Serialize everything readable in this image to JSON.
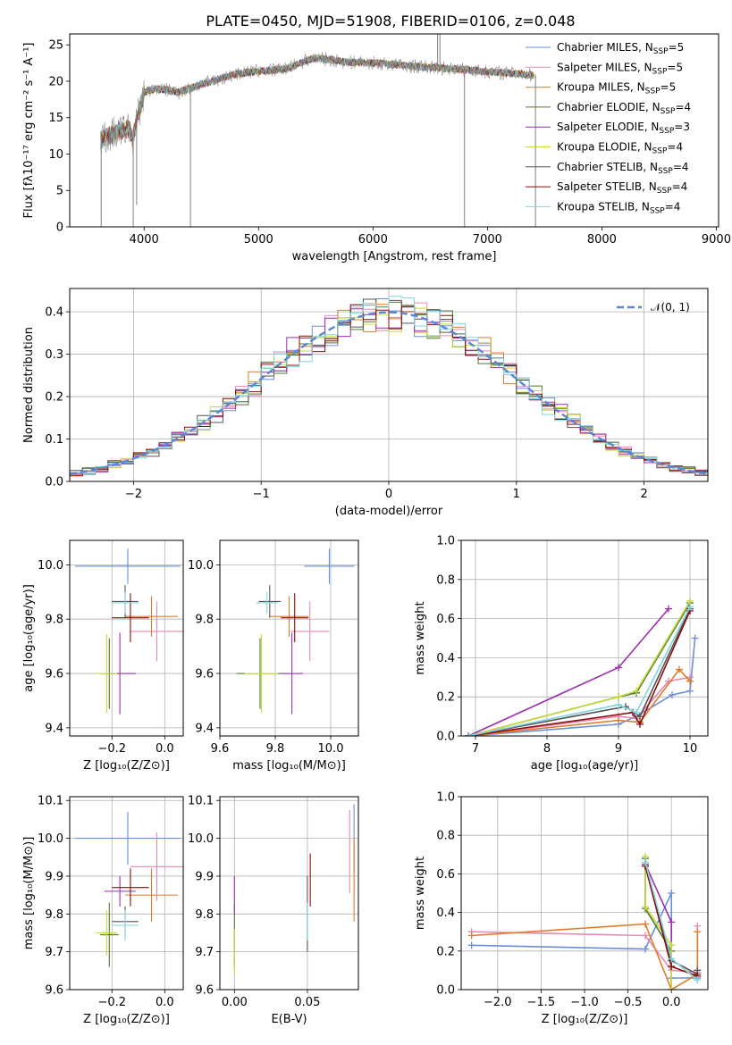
{
  "colors": {
    "chabrier_miles": "#6a8fd8",
    "salpeter_miles": "#e58ab4",
    "kroupa_miles": "#e07b2a",
    "chabrier_elodie": "#4c7a35",
    "salpeter_elodie": "#9b2fb0",
    "kroupa_elodie": "#c9d93a",
    "chabrier_stelib": "#555555",
    "salpeter_stelib": "#8b0d0d",
    "kroupa_stelib": "#7fd6de",
    "normal": "#5a86d6",
    "observed": "#808080"
  },
  "chart_data": [
    {
      "id": "spectrum",
      "type": "line",
      "title": "PLATE=0450, MJD=51908, FIBERID=0106, z=0.048",
      "xlabel": "wavelength [Angstrom, rest frame]",
      "ylabel": "Flux [fλ10⁻¹⁷ erg cm⁻² s⁻¹ A⁻¹]",
      "xlim": [
        3350,
        9020
      ],
      "ylim": [
        0,
        26.5
      ],
      "xticks": [
        4000,
        5000,
        6000,
        7000,
        8000,
        9000
      ],
      "yticks": [
        0,
        5,
        10,
        15,
        20,
        25
      ],
      "grid": false,
      "legend_position": "right",
      "legend": [
        {
          "label": "Chabrier MILES, N",
          "sub": "SSP",
          "tail": "=5",
          "color": "chabrier_miles"
        },
        {
          "label": "Salpeter MILES, N",
          "sub": "SSP",
          "tail": "=5",
          "color": "salpeter_miles"
        },
        {
          "label": "Kroupa MILES, N",
          "sub": "SSP",
          "tail": "=5",
          "color": "kroupa_miles"
        },
        {
          "label": "Chabrier ELODIE, N",
          "sub": "SSP",
          "tail": "=4",
          "color": "chabrier_elodie"
        },
        {
          "label": "Salpeter ELODIE, N",
          "sub": "SSP",
          "tail": "=3",
          "color": "salpeter_elodie"
        },
        {
          "label": "Kroupa ELODIE, N",
          "sub": "SSP",
          "tail": "=4",
          "color": "kroupa_elodie"
        },
        {
          "label": "Chabrier STELIB, N",
          "sub": "SSP",
          "tail": "=4",
          "color": "chabrier_stelib"
        },
        {
          "label": "Salpeter STELIB, N",
          "sub": "SSP",
          "tail": "=4",
          "color": "salpeter_stelib"
        },
        {
          "label": "Kroupa STELIB, N",
          "sub": "SSP",
          "tail": "=4",
          "color": "kroupa_stelib"
        }
      ],
      "continuum": {
        "x": [
          3620,
          3700,
          3800,
          3870,
          3900,
          3950,
          4000,
          4100,
          4200,
          4300,
          4400,
          4500,
          4600,
          4700,
          4800,
          4900,
          5000,
          5100,
          5200,
          5300,
          5400,
          5500,
          5600,
          5700,
          5800,
          5900,
          6000,
          6100,
          6200,
          6300,
          6400,
          6500,
          6600,
          6700,
          6800,
          6900,
          7000,
          7100,
          7200,
          7300,
          7400
        ],
        "y": [
          12.0,
          12.5,
          13.2,
          13.5,
          12.0,
          15.5,
          18.5,
          19.0,
          18.8,
          18.5,
          19.0,
          19.6,
          20.0,
          20.5,
          21.0,
          21.2,
          21.4,
          21.5,
          21.6,
          22.0,
          22.8,
          23.2,
          23.0,
          22.8,
          22.6,
          22.6,
          22.5,
          22.4,
          22.3,
          22.1,
          22.0,
          21.9,
          21.8,
          21.7,
          21.6,
          21.5,
          21.3,
          21.2,
          21.1,
          21.0,
          20.8
        ]
      },
      "spikes": [
        {
          "x": 3625,
          "to": 0
        },
        {
          "x": 3905,
          "to": 0
        },
        {
          "x": 3935,
          "to": 3
        },
        {
          "x": 4405,
          "to": 0
        },
        {
          "x": 6565,
          "to": 26.5
        },
        {
          "x": 6585,
          "to": 26.5
        },
        {
          "x": 6800,
          "to": 0
        },
        {
          "x": 7420,
          "to": 0
        }
      ]
    },
    {
      "id": "residuals",
      "type": "histogram",
      "xlabel": "(data-model)/error",
      "ylabel": "Normed distribution",
      "xlim": [
        -2.5,
        2.5
      ],
      "ylim": [
        0,
        0.455
      ],
      "xticks": [
        -2,
        -1,
        0,
        1,
        2
      ],
      "yticks": [
        0.0,
        0.1,
        0.2,
        0.3,
        0.4
      ],
      "grid": true,
      "legend_position": "top-right",
      "legend": [
        {
          "label": "𝒩(0, 1)",
          "color": "normal"
        }
      ],
      "bin_width": 0.1,
      "curve": {
        "type": "normal",
        "mean": 0,
        "sigma": 1
      }
    },
    {
      "id": "age_vs_Z",
      "type": "scatter",
      "xlabel": "Z [log₁₀(Z/Z⊙)]",
      "ylabel": "age  [log₁₀(age/yr)]",
      "xlim": [
        -0.36,
        0.07
      ],
      "ylim": [
        9.37,
        10.09
      ],
      "xticks": [
        -0.2,
        0.0
      ],
      "yticks": [
        9.4,
        9.6,
        9.8,
        10.0
      ],
      "grid": true,
      "points": [
        {
          "model": "chabrier_miles",
          "x": -0.14,
          "xerr": 0.2,
          "y": 9.995,
          "yerr": 0.065
        },
        {
          "model": "salpeter_miles",
          "x": -0.03,
          "xerr": 0.1,
          "y": 9.755,
          "yerr": 0.11
        },
        {
          "model": "kroupa_miles",
          "x": -0.05,
          "xerr": 0.1,
          "y": 9.81,
          "yerr": 0.075
        },
        {
          "model": "chabrier_elodie",
          "x": -0.21,
          "xerr": 0.035,
          "y": 9.6,
          "yerr": 0.13
        },
        {
          "model": "salpeter_elodie",
          "x": -0.17,
          "xerr": 0.06,
          "y": 9.6,
          "yerr": 0.15
        },
        {
          "model": "kroupa_elodie",
          "x": -0.22,
          "xerr": 0.04,
          "y": 9.6,
          "yerr": 0.145
        },
        {
          "model": "chabrier_stelib",
          "x": -0.15,
          "xerr": 0.05,
          "y": 9.865,
          "yerr": 0.06
        },
        {
          "model": "salpeter_stelib",
          "x": -0.13,
          "xerr": 0.07,
          "y": 9.805,
          "yerr": 0.09
        },
        {
          "model": "kroupa_stelib",
          "x": -0.15,
          "xerr": 0.05,
          "y": 9.86,
          "yerr": 0.04
        }
      ]
    },
    {
      "id": "age_vs_mass",
      "type": "scatter",
      "xlabel": "mass [log₁₀(M/M⊙)]",
      "ylabel": "",
      "xlim": [
        9.6,
        10.1
      ],
      "ylim": [
        9.37,
        10.09
      ],
      "xticks": [
        9.6,
        9.8,
        10.0
      ],
      "yticks": [
        9.4,
        9.6,
        9.8,
        10.0
      ],
      "grid": true,
      "points": [
        {
          "model": "chabrier_miles",
          "x": 9.995,
          "xerr": 0.09,
          "y": 9.995,
          "yerr": 0.065
        },
        {
          "model": "salpeter_miles",
          "x": 9.925,
          "xerr": 0.07,
          "y": 9.755,
          "yerr": 0.11
        },
        {
          "model": "kroupa_miles",
          "x": 9.85,
          "xerr": 0.07,
          "y": 9.81,
          "yerr": 0.075
        },
        {
          "model": "chabrier_elodie",
          "x": 9.745,
          "xerr": 0.085,
          "y": 9.6,
          "yerr": 0.13
        },
        {
          "model": "salpeter_elodie",
          "x": 9.86,
          "xerr": 0.04,
          "y": 9.6,
          "yerr": 0.15
        },
        {
          "model": "kroupa_elodie",
          "x": 9.75,
          "xerr": 0.06,
          "y": 9.6,
          "yerr": 0.145
        },
        {
          "model": "chabrier_stelib",
          "x": 9.78,
          "xerr": 0.04,
          "y": 9.865,
          "yerr": 0.06
        },
        {
          "model": "salpeter_stelib",
          "x": 9.87,
          "xerr": 0.05,
          "y": 9.805,
          "yerr": 0.09
        },
        {
          "model": "kroupa_stelib",
          "x": 9.77,
          "xerr": 0.04,
          "y": 9.86,
          "yerr": 0.04
        }
      ]
    },
    {
      "id": "weight_vs_age",
      "type": "line",
      "xlabel": "age  [log₁₀(age/yr)]",
      "ylabel": "mass weight",
      "xlim": [
        6.8,
        10.25
      ],
      "ylim": [
        0,
        1.0
      ],
      "xticks": [
        7,
        8,
        9,
        10
      ],
      "yticks": [
        0.0,
        0.2,
        0.4,
        0.6,
        0.8,
        1.0
      ],
      "grid": true,
      "series": [
        {
          "model": "chabrier_miles",
          "x": [
            6.9,
            9.0,
            9.25,
            9.75,
            10.0,
            10.07
          ],
          "y": [
            0.0,
            0.06,
            0.1,
            0.21,
            0.23,
            0.5
          ]
        },
        {
          "model": "salpeter_miles",
          "x": [
            6.9,
            9.0,
            9.25,
            9.7,
            10.0
          ],
          "y": [
            0.0,
            0.1,
            0.09,
            0.28,
            0.3
          ]
        },
        {
          "model": "kroupa_miles",
          "x": [
            6.9,
            9.0,
            9.3,
            9.85,
            10.0
          ],
          "y": [
            0.0,
            0.08,
            0.07,
            0.34,
            0.28
          ]
        },
        {
          "model": "chabrier_elodie",
          "x": [
            6.9,
            9.0,
            9.25,
            10.0
          ],
          "y": [
            0.0,
            0.2,
            0.22,
            0.68
          ]
        },
        {
          "model": "salpeter_elodie",
          "x": [
            6.9,
            9.0,
            9.7
          ],
          "y": [
            0.0,
            0.35,
            0.65
          ]
        },
        {
          "model": "kroupa_elodie",
          "x": [
            6.9,
            9.0,
            9.25,
            10.0
          ],
          "y": [
            0.0,
            0.2,
            0.23,
            0.69
          ]
        },
        {
          "model": "chabrier_stelib",
          "x": [
            6.9,
            9.1,
            9.3,
            10.0
          ],
          "y": [
            0.0,
            0.15,
            0.1,
            0.65
          ]
        },
        {
          "model": "salpeter_stelib",
          "x": [
            6.9,
            9.2,
            9.3,
            10.0
          ],
          "y": [
            0.0,
            0.12,
            0.06,
            0.64
          ]
        },
        {
          "model": "kroupa_stelib",
          "x": [
            6.9,
            9.0,
            9.25,
            10.0
          ],
          "y": [
            0.0,
            0.16,
            0.12,
            0.66
          ]
        }
      ]
    },
    {
      "id": "mass_vs_Z",
      "type": "scatter",
      "xlabel": "Z [log₁₀(Z/Z⊙)]",
      "ylabel": "mass [log₁₀(M/M⊙)]",
      "xlim": [
        -0.36,
        0.07
      ],
      "ylim": [
        9.6,
        10.11
      ],
      "xticks": [
        -0.2,
        0.0
      ],
      "yticks": [
        9.6,
        9.7,
        9.8,
        9.9,
        10.0,
        10.1
      ],
      "grid": true,
      "points": [
        {
          "model": "chabrier_miles",
          "x": -0.14,
          "xerr": 0.2,
          "y": 10.0,
          "yerr": 0.07
        },
        {
          "model": "salpeter_miles",
          "x": -0.03,
          "xerr": 0.1,
          "y": 9.925,
          "yerr": 0.09
        },
        {
          "model": "kroupa_miles",
          "x": -0.05,
          "xerr": 0.1,
          "y": 9.85,
          "yerr": 0.07
        },
        {
          "model": "chabrier_elodie",
          "x": -0.21,
          "xerr": 0.035,
          "y": 9.745,
          "yerr": 0.085
        },
        {
          "model": "salpeter_elodie",
          "x": -0.17,
          "xerr": 0.06,
          "y": 9.86,
          "yerr": 0.04
        },
        {
          "model": "kroupa_elodie",
          "x": -0.22,
          "xerr": 0.04,
          "y": 9.75,
          "yerr": 0.06
        },
        {
          "model": "chabrier_stelib",
          "x": -0.15,
          "xerr": 0.05,
          "y": 9.78,
          "yerr": 0.04
        },
        {
          "model": "salpeter_stelib",
          "x": -0.13,
          "xerr": 0.07,
          "y": 9.87,
          "yerr": 0.05
        },
        {
          "model": "kroupa_stelib",
          "x": -0.15,
          "xerr": 0.05,
          "y": 9.77,
          "yerr": 0.04
        }
      ]
    },
    {
      "id": "mass_vs_ebv",
      "type": "scatter",
      "xlabel": "E(B-V)",
      "ylabel": "",
      "xlim": [
        -0.01,
        0.085
      ],
      "ylim": [
        9.6,
        10.11
      ],
      "xticks": [
        0.0,
        0.05
      ],
      "xticklabels": [
        "0.00",
        "0.05"
      ],
      "yticks": [
        9.6,
        9.7,
        9.8,
        9.9,
        10.0,
        10.1
      ],
      "grid": true,
      "points": [
        {
          "model": "chabrier_miles",
          "x": 0.082,
          "xerr": 0,
          "y": 10.0,
          "yerr": 0.09
        },
        {
          "model": "salpeter_miles",
          "x": 0.079,
          "xerr": 0,
          "y": 9.965,
          "yerr": 0.11
        },
        {
          "model": "kroupa_miles",
          "x": 0.082,
          "xerr": 0,
          "y": 9.89,
          "yerr": 0.11
        },
        {
          "model": "chabrier_elodie",
          "x": 0.0,
          "xerr": 0,
          "y": 9.745,
          "yerr": 0.085
        },
        {
          "model": "salpeter_elodie",
          "x": 0.0,
          "xerr": 0,
          "y": 9.85,
          "yerr": 0.05
        },
        {
          "model": "kroupa_elodie",
          "x": 0.0,
          "xerr": 0,
          "y": 9.7,
          "yerr": 0.06
        },
        {
          "model": "chabrier_stelib",
          "x": 0.05,
          "xerr": 0,
          "y": 9.8,
          "yerr": 0.1
        },
        {
          "model": "salpeter_stelib",
          "x": 0.052,
          "xerr": 0,
          "y": 9.89,
          "yerr": 0.07
        },
        {
          "model": "kroupa_stelib",
          "x": 0.05,
          "xerr": 0,
          "y": 9.78,
          "yerr": 0.05
        }
      ]
    },
    {
      "id": "weight_vs_Z",
      "type": "line",
      "xlabel": "Z [log₁₀(Z/Z⊙)]",
      "ylabel": "mass weight",
      "xlim": [
        -2.42,
        0.42
      ],
      "ylim": [
        0,
        1.0
      ],
      "xticks": [
        -2.0,
        -1.5,
        -1.0,
        -0.5,
        0.0
      ],
      "yticks": [
        0.0,
        0.2,
        0.4,
        0.6,
        0.8,
        1.0
      ],
      "grid": true,
      "series": [
        {
          "model": "chabrier_miles",
          "x": [
            -2.3,
            -0.3,
            0.0,
            0.0,
            0.3,
            0.3
          ],
          "y": [
            0.23,
            0.21,
            0.5,
            0.06,
            0.06,
            0.1
          ]
        },
        {
          "model": "salpeter_miles",
          "x": [
            -2.3,
            -0.3,
            0.0,
            0.3,
            0.3
          ],
          "y": [
            0.3,
            0.28,
            0.1,
            0.09,
            0.33
          ]
        },
        {
          "model": "kroupa_miles",
          "x": [
            -2.3,
            -0.3,
            0.0,
            0.3,
            0.3
          ],
          "y": [
            0.28,
            0.34,
            0.0,
            0.08,
            0.3
          ]
        },
        {
          "model": "chabrier_elodie",
          "x": [
            -0.3,
            -0.3,
            0.0,
            0.0
          ],
          "y": [
            0.68,
            0.42,
            0.2,
            0.0
          ]
        },
        {
          "model": "salpeter_elodie",
          "x": [
            -0.3,
            0.0,
            0.0
          ],
          "y": [
            0.65,
            0.35,
            0.0
          ]
        },
        {
          "model": "kroupa_elodie",
          "x": [
            -0.3,
            -0.3,
            0.0,
            0.0
          ],
          "y": [
            0.69,
            0.43,
            0.23,
            0.0
          ]
        },
        {
          "model": "chabrier_stelib",
          "x": [
            -0.3,
            0.0,
            0.3,
            0.3
          ],
          "y": [
            0.65,
            0.15,
            0.08,
            0.1
          ]
        },
        {
          "model": "salpeter_stelib",
          "x": [
            -0.3,
            0.0,
            0.3
          ],
          "y": [
            0.64,
            0.12,
            0.07
          ]
        },
        {
          "model": "kroupa_stelib",
          "x": [
            -0.3,
            0.0,
            0.3
          ],
          "y": [
            0.66,
            0.16,
            0.05
          ]
        }
      ]
    }
  ]
}
